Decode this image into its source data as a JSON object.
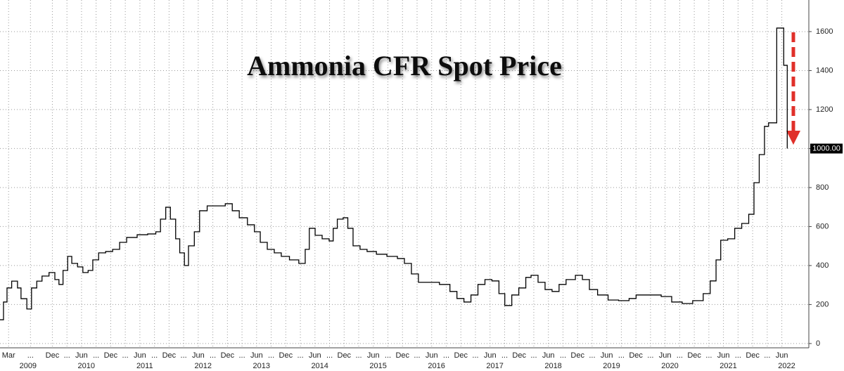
{
  "chart_data": {
    "type": "line",
    "title": "Ammonia CFR Spot Price",
    "step": true,
    "grid": true,
    "y_axis_side": "right",
    "xlim": [
      2009.02,
      2022.88
    ],
    "ylim": [
      -22,
      1762
    ],
    "yticks": [
      0,
      200,
      400,
      600,
      800,
      1000,
      1200,
      1400,
      1600
    ],
    "xticks": [
      {
        "value": 2009.167,
        "label": "Mar"
      },
      {
        "value": 2009.542,
        "label": "..."
      },
      {
        "value": 2009.917,
        "label": "Dec"
      },
      {
        "value": 2010.167,
        "label": "..."
      },
      {
        "value": 2010.417,
        "label": "Jun"
      },
      {
        "value": 2010.667,
        "label": "..."
      },
      {
        "value": 2010.917,
        "label": "Dec"
      },
      {
        "value": 2011.167,
        "label": "..."
      },
      {
        "value": 2011.417,
        "label": "Jun"
      },
      {
        "value": 2011.667,
        "label": "..."
      },
      {
        "value": 2011.917,
        "label": "Dec"
      },
      {
        "value": 2012.167,
        "label": "..."
      },
      {
        "value": 2012.417,
        "label": "Jun"
      },
      {
        "value": 2012.667,
        "label": "..."
      },
      {
        "value": 2012.917,
        "label": "Dec"
      },
      {
        "value": 2013.167,
        "label": "..."
      },
      {
        "value": 2013.417,
        "label": "Jun"
      },
      {
        "value": 2013.667,
        "label": "..."
      },
      {
        "value": 2013.917,
        "label": "Dec"
      },
      {
        "value": 2014.167,
        "label": "..."
      },
      {
        "value": 2014.417,
        "label": "Jun"
      },
      {
        "value": 2014.667,
        "label": "..."
      },
      {
        "value": 2014.917,
        "label": "Dec"
      },
      {
        "value": 2015.167,
        "label": "..."
      },
      {
        "value": 2015.417,
        "label": "Jun"
      },
      {
        "value": 2015.667,
        "label": "..."
      },
      {
        "value": 2015.917,
        "label": "Dec"
      },
      {
        "value": 2016.167,
        "label": "..."
      },
      {
        "value": 2016.417,
        "label": "Jun"
      },
      {
        "value": 2016.667,
        "label": "..."
      },
      {
        "value": 2016.917,
        "label": "Dec"
      },
      {
        "value": 2017.167,
        "label": "..."
      },
      {
        "value": 2017.417,
        "label": "Jun"
      },
      {
        "value": 2017.667,
        "label": "..."
      },
      {
        "value": 2017.917,
        "label": "Dec"
      },
      {
        "value": 2018.167,
        "label": "..."
      },
      {
        "value": 2018.417,
        "label": "Jun"
      },
      {
        "value": 2018.667,
        "label": "..."
      },
      {
        "value": 2018.917,
        "label": "Dec"
      },
      {
        "value": 2019.167,
        "label": "..."
      },
      {
        "value": 2019.417,
        "label": "Jun"
      },
      {
        "value": 2019.667,
        "label": "..."
      },
      {
        "value": 2019.917,
        "label": "Dec"
      },
      {
        "value": 2020.167,
        "label": "..."
      },
      {
        "value": 2020.417,
        "label": "Jun"
      },
      {
        "value": 2020.667,
        "label": "..."
      },
      {
        "value": 2020.917,
        "label": "Dec"
      },
      {
        "value": 2021.167,
        "label": "..."
      },
      {
        "value": 2021.417,
        "label": "Jun"
      },
      {
        "value": 2021.667,
        "label": "..."
      },
      {
        "value": 2021.917,
        "label": "Dec"
      },
      {
        "value": 2022.167,
        "label": "..."
      },
      {
        "value": 2022.417,
        "label": "Jun"
      }
    ],
    "year_ticks": [
      {
        "value": 2009.5,
        "label": "2009"
      },
      {
        "value": 2010.5,
        "label": "2010"
      },
      {
        "value": 2011.5,
        "label": "2011"
      },
      {
        "value": 2012.5,
        "label": "2012"
      },
      {
        "value": 2013.5,
        "label": "2013"
      },
      {
        "value": 2014.5,
        "label": "2014"
      },
      {
        "value": 2015.5,
        "label": "2015"
      },
      {
        "value": 2016.5,
        "label": "2016"
      },
      {
        "value": 2017.5,
        "label": "2017"
      },
      {
        "value": 2018.5,
        "label": "2018"
      },
      {
        "value": 2019.5,
        "label": "2019"
      },
      {
        "value": 2020.5,
        "label": "2020"
      },
      {
        "value": 2021.5,
        "label": "2021"
      },
      {
        "value": 2022.5,
        "label": "2022"
      }
    ],
    "last_value_tag": {
      "value": 1000,
      "label": "1000.00"
    },
    "x": [
      2009.02,
      2009.08,
      2009.14,
      2009.22,
      2009.32,
      2009.38,
      2009.48,
      2009.56,
      2009.65,
      2009.74,
      2009.86,
      2009.96,
      2010.03,
      2010.1,
      2010.18,
      2010.25,
      2010.35,
      2010.44,
      2010.53,
      2010.61,
      2010.71,
      2010.83,
      2010.95,
      2011.07,
      2011.19,
      2011.37,
      2011.55,
      2011.69,
      2011.77,
      2011.86,
      2011.94,
      2012.03,
      2012.1,
      2012.18,
      2012.25,
      2012.35,
      2012.44,
      2012.57,
      2012.75,
      2012.88,
      2013.0,
      2013.12,
      2013.26,
      2013.38,
      2013.48,
      2013.6,
      2013.72,
      2013.84,
      2013.98,
      2014.14,
      2014.25,
      2014.32,
      2014.42,
      2014.54,
      2014.66,
      2014.73,
      2014.8,
      2014.9,
      2014.98,
      2015.07,
      2015.19,
      2015.31,
      2015.47,
      2015.65,
      2015.83,
      2015.95,
      2016.07,
      2016.19,
      2016.37,
      2016.55,
      2016.73,
      2016.85,
      2016.97,
      2017.09,
      2017.21,
      2017.33,
      2017.45,
      2017.57,
      2017.67,
      2017.79,
      2017.91,
      2018.03,
      2018.12,
      2018.24,
      2018.36,
      2018.48,
      2018.6,
      2018.72,
      2018.88,
      2019.0,
      2019.12,
      2019.26,
      2019.44,
      2019.62,
      2019.8,
      2019.92,
      2020.1,
      2020.35,
      2020.53,
      2020.71,
      2020.89,
      2021.07,
      2021.19,
      2021.29,
      2021.37,
      2021.49,
      2021.61,
      2021.73,
      2021.85,
      2021.94,
      2022.03,
      2022.12,
      2022.19,
      2022.27,
      2022.33,
      2022.42,
      2022.45,
      2022.49,
      2022.51
    ],
    "series": [
      {
        "name": "Ammonia CFR Spot Price",
        "color": "#000000",
        "values": [
          122,
          213,
          285,
          320,
          285,
          230,
          177,
          285,
          320,
          346,
          364,
          328,
          303,
          375,
          447,
          411,
          393,
          364,
          375,
          429,
          465,
          472,
          483,
          519,
          544,
          558,
          562,
          573,
          638,
          699,
          638,
          537,
          465,
          400,
          501,
          573,
          681,
          706,
          706,
          717,
          681,
          645,
          609,
          573,
          519,
          483,
          465,
          447,
          429,
          411,
          483,
          591,
          555,
          537,
          526,
          591,
          638,
          645,
          591,
          501,
          483,
          472,
          458,
          447,
          436,
          411,
          357,
          314,
          314,
          303,
          267,
          231,
          213,
          249,
          303,
          328,
          321,
          256,
          195,
          249,
          285,
          339,
          350,
          314,
          277,
          267,
          303,
          328,
          350,
          328,
          277,
          249,
          223,
          220,
          231,
          249,
          249,
          241,
          213,
          205,
          220,
          256,
          321,
          429,
          530,
          537,
          591,
          616,
          663,
          825,
          969,
          1114,
          1132,
          1132,
          1618,
          1618,
          1427,
          1427,
          1000
        ]
      }
    ]
  }
}
